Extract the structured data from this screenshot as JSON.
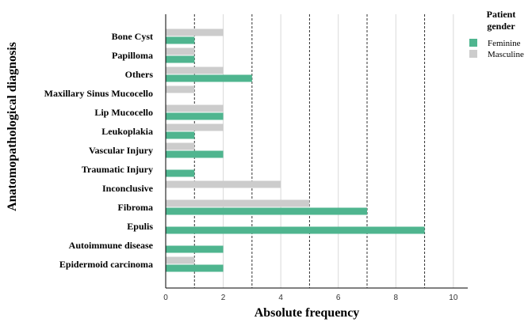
{
  "chart_data": {
    "type": "bar",
    "orientation": "horizontal",
    "categories": [
      "Bone Cyst",
      "Papilloma",
      "Others",
      "Maxillary Sinus Mucocello",
      "Lip Mucocello",
      "Leukoplakia",
      "Vascular Injury",
      "Traumatic Injury",
      "Inconclusive",
      "Fibroma",
      "Epulis",
      "Autoimmune disease",
      "Epidermoid carcinoma"
    ],
    "series": [
      {
        "name": "Masculine",
        "color": "#cccccc",
        "values": [
          2,
          1,
          2,
          1,
          2,
          2,
          1,
          0,
          4,
          5,
          0,
          0,
          1
        ]
      },
      {
        "name": "Feminine",
        "color": "#4fb58f",
        "values": [
          1,
          1,
          3,
          0,
          2,
          1,
          2,
          1,
          0,
          7,
          9,
          2,
          2
        ]
      }
    ],
    "xlabel": "Absolute frequency",
    "ylabel": "Anatomopathological diagnosis",
    "xlim": [
      0,
      10.5
    ],
    "xticks": [
      0,
      2,
      4,
      6,
      8,
      10
    ],
    "grid": {
      "solid_at": [
        2,
        4,
        6,
        8,
        10
      ],
      "dotted_at": [
        1,
        3,
        5,
        7,
        9
      ]
    },
    "legend": {
      "title": "Patient gender",
      "position": "top-right",
      "entries": [
        {
          "label": "Feminine",
          "color": "#4fb58f"
        },
        {
          "label": "Masculine",
          "color": "#cccccc"
        }
      ]
    }
  }
}
